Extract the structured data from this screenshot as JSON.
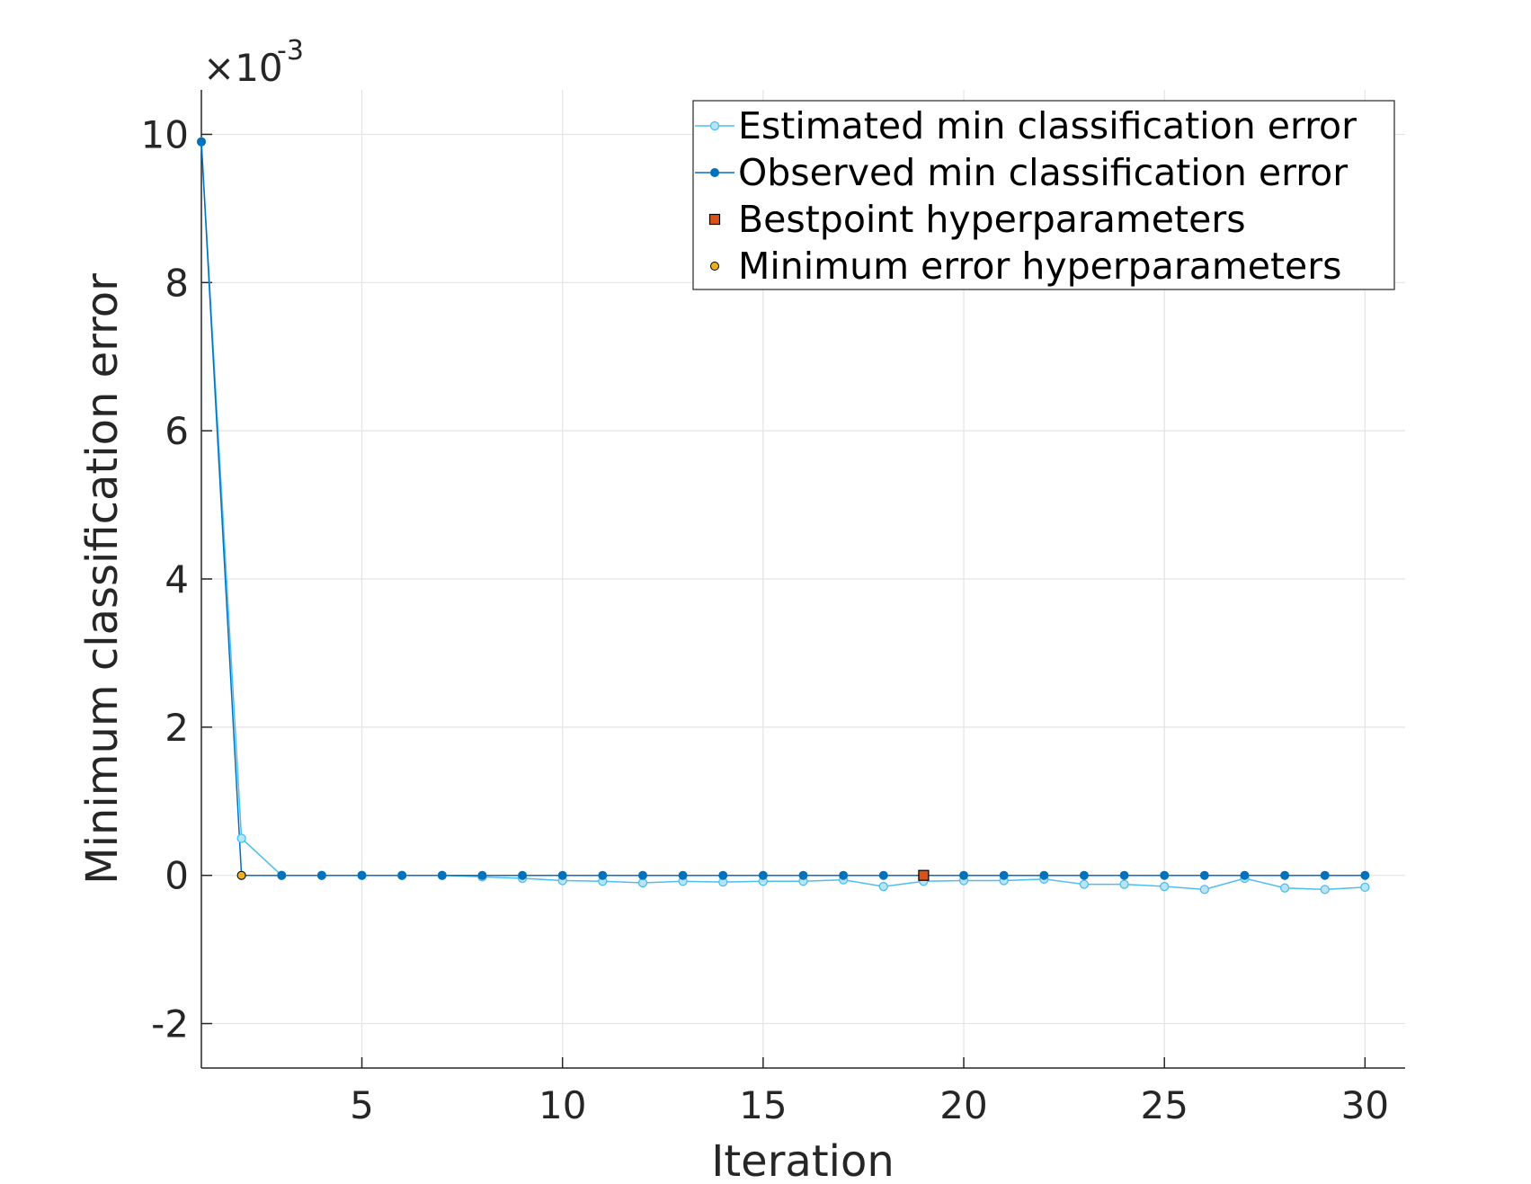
{
  "chart_data": {
    "type": "line",
    "xlabel": "Iteration",
    "ylabel": "Minimum classification error",
    "y_exponent_base": "×10",
    "y_exponent_power": "-3",
    "xlim": [
      1,
      31
    ],
    "ylim": [
      -2.6,
      10.6
    ],
    "x_ticks": [
      5,
      10,
      15,
      20,
      25,
      30
    ],
    "y_ticks": [
      -2,
      0,
      2,
      4,
      6,
      8,
      10
    ],
    "grid": true,
    "legend_position": "top-right",
    "x": [
      1,
      2,
      3,
      4,
      5,
      6,
      7,
      8,
      9,
      10,
      11,
      12,
      13,
      14,
      15,
      16,
      17,
      18,
      19,
      20,
      21,
      22,
      23,
      24,
      25,
      26,
      27,
      28,
      29,
      30
    ],
    "series": [
      {
        "name": "Estimated min classification error",
        "color": "#4DBEEE",
        "marker": "circle-open",
        "values": [
          9.9,
          0.5,
          0.0,
          0.0,
          0.0,
          0.0,
          0.0,
          -0.02,
          -0.04,
          -0.07,
          -0.08,
          -0.1,
          -0.08,
          -0.09,
          -0.08,
          -0.08,
          -0.06,
          -0.15,
          -0.08,
          -0.07,
          -0.07,
          -0.05,
          -0.12,
          -0.12,
          -0.15,
          -0.19,
          -0.04,
          -0.17,
          -0.19,
          -0.16
        ]
      },
      {
        "name": "Observed min classification error",
        "color": "#0072BD",
        "marker": "dot",
        "values": [
          9.9,
          0,
          0,
          0,
          0,
          0,
          0,
          0,
          0,
          0,
          0,
          0,
          0,
          0,
          0,
          0,
          0,
          0,
          0,
          0,
          0,
          0,
          0,
          0,
          0,
          0,
          0,
          0,
          0,
          0
        ]
      },
      {
        "name": "Bestpoint hyperparameters",
        "color": "#D95319",
        "marker": "square",
        "points": [
          [
            19,
            0
          ]
        ]
      },
      {
        "name": "Minimum error hyperparameters",
        "color": "#EDB120",
        "marker": "dot",
        "points": [
          [
            2,
            0
          ]
        ]
      }
    ]
  }
}
